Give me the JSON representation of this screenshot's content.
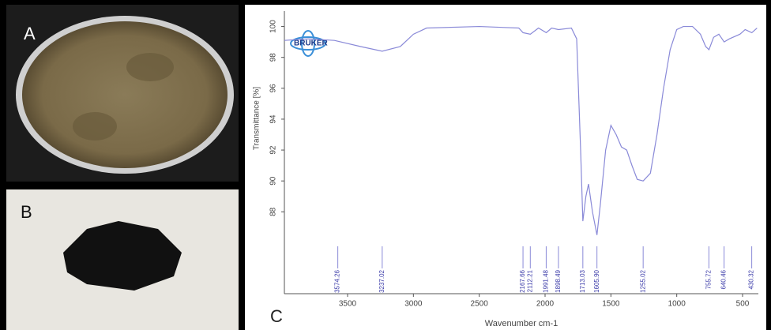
{
  "figure_labels": [
    "A",
    "B"
  ],
  "logo": "BRUKER",
  "chart_data": {
    "type": "line",
    "panel_label": "C",
    "xlabel": "Wavenumber cm-1",
    "ylabel": "Transmittance [%]",
    "xlim": [
      3980,
      380
    ],
    "ylim": [
      82.7,
      101
    ],
    "xticks": [
      3500,
      3000,
      2500,
      2000,
      1500,
      1000,
      500
    ],
    "yticks": [
      88,
      90,
      92,
      94,
      96,
      98,
      100
    ],
    "x": [
      3980,
      3800,
      3600,
      3400,
      3237,
      3100,
      3000,
      2900,
      2500,
      2200,
      2167,
      2112,
      2050,
      1991,
      1950,
      1898,
      1800,
      1760,
      1730,
      1713,
      1690,
      1670,
      1640,
      1606,
      1580,
      1540,
      1500,
      1460,
      1420,
      1380,
      1340,
      1300,
      1255,
      1200,
      1150,
      1100,
      1050,
      1000,
      950,
      880,
      820,
      780,
      755,
      720,
      680,
      640,
      600,
      520,
      480,
      430,
      390
    ],
    "series": [
      {
        "color": "#8a8ad8",
        "values": [
          99.1,
          99.2,
          99.1,
          98.7,
          98.4,
          98.7,
          99.5,
          99.9,
          100,
          99.9,
          99.6,
          99.5,
          99.9,
          99.6,
          99.9,
          99.8,
          99.9,
          99.2,
          92,
          87.4,
          89,
          89.8,
          88,
          86.5,
          88.5,
          92,
          93.6,
          93,
          92.2,
          92,
          91,
          90.1,
          90,
          90.5,
          93,
          96,
          98.5,
          99.8,
          100,
          100,
          99.5,
          98.7,
          98.5,
          99.3,
          99.5,
          99.0,
          99.2,
          99.5,
          99.8,
          99.6,
          99.9
        ]
      }
    ],
    "peaks": [
      {
        "value": 3574.26,
        "label": "3574.26"
      },
      {
        "value": 3237.02,
        "label": "3237.02"
      },
      {
        "value": 2167.66,
        "label": "2167.66"
      },
      {
        "value": 2112.21,
        "label": "2112.21"
      },
      {
        "value": 1991.48,
        "label": "1991.48"
      },
      {
        "value": 1898.49,
        "label": "1898.49"
      },
      {
        "value": 1713.03,
        "label": "1713.03"
      },
      {
        "value": 1605.9,
        "label": "1605.90"
      },
      {
        "value": 1255.02,
        "label": "1255.02"
      },
      {
        "value": 755.72,
        "label": "755.72"
      },
      {
        "value": 640.46,
        "label": "640.46"
      },
      {
        "value": 430.32,
        "label": "430.32"
      }
    ]
  }
}
